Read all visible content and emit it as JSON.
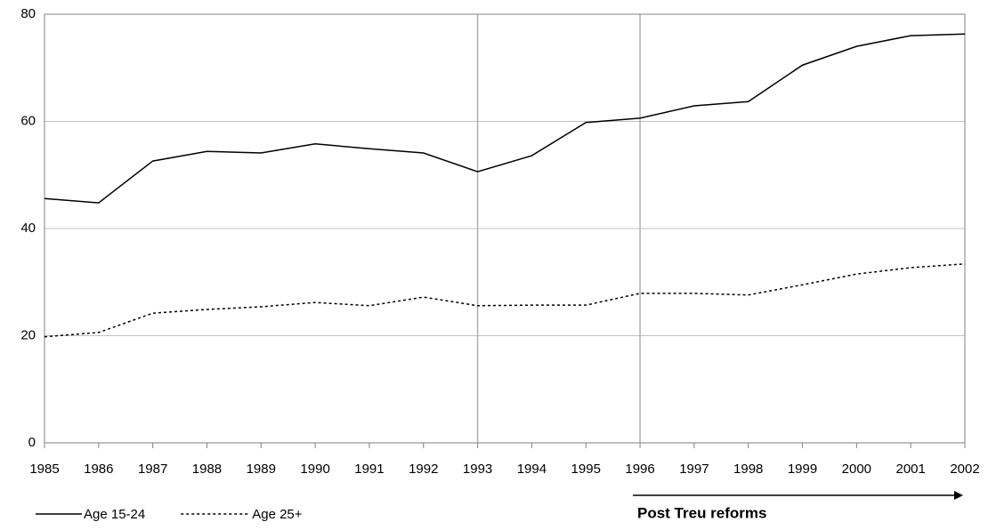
{
  "chart_data": {
    "type": "line",
    "x": [
      1985,
      1986,
      1987,
      1988,
      1989,
      1990,
      1991,
      1992,
      1993,
      1994,
      1995,
      1996,
      1997,
      1998,
      1999,
      2000,
      2001,
      2002
    ],
    "series": [
      {
        "name": "Age 15-24",
        "color": "#000000",
        "dash": "solid",
        "values": [
          45.6,
          44.8,
          52.6,
          54.4,
          54.1,
          55.8,
          54.9,
          54.1,
          50.6,
          53.6,
          59.8,
          60.6,
          62.9,
          63.7,
          70.5,
          74.0,
          76.0,
          76.3
        ]
      },
      {
        "name": "Age 25+",
        "color": "#000000",
        "dash": "dotted",
        "values": [
          19.8,
          20.6,
          24.2,
          24.9,
          25.4,
          26.2,
          25.6,
          27.2,
          25.6,
          25.7,
          25.7,
          27.9,
          27.9,
          27.6,
          29.5,
          31.5,
          32.7,
          33.4
        ]
      }
    ],
    "xlim": [
      1985,
      2002
    ],
    "xticks": [
      1985,
      1986,
      1987,
      1988,
      1989,
      1990,
      1991,
      1992,
      1993,
      1994,
      1995,
      1996,
      1997,
      1998,
      1999,
      2000,
      2001,
      2002
    ],
    "ylim": [
      0,
      80
    ],
    "yticks": [
      0,
      20,
      40,
      60,
      80
    ],
    "grid": true,
    "vlines": [
      1993,
      1996
    ],
    "annotation": "Post Treu reforms",
    "legend": "bottom-left"
  }
}
